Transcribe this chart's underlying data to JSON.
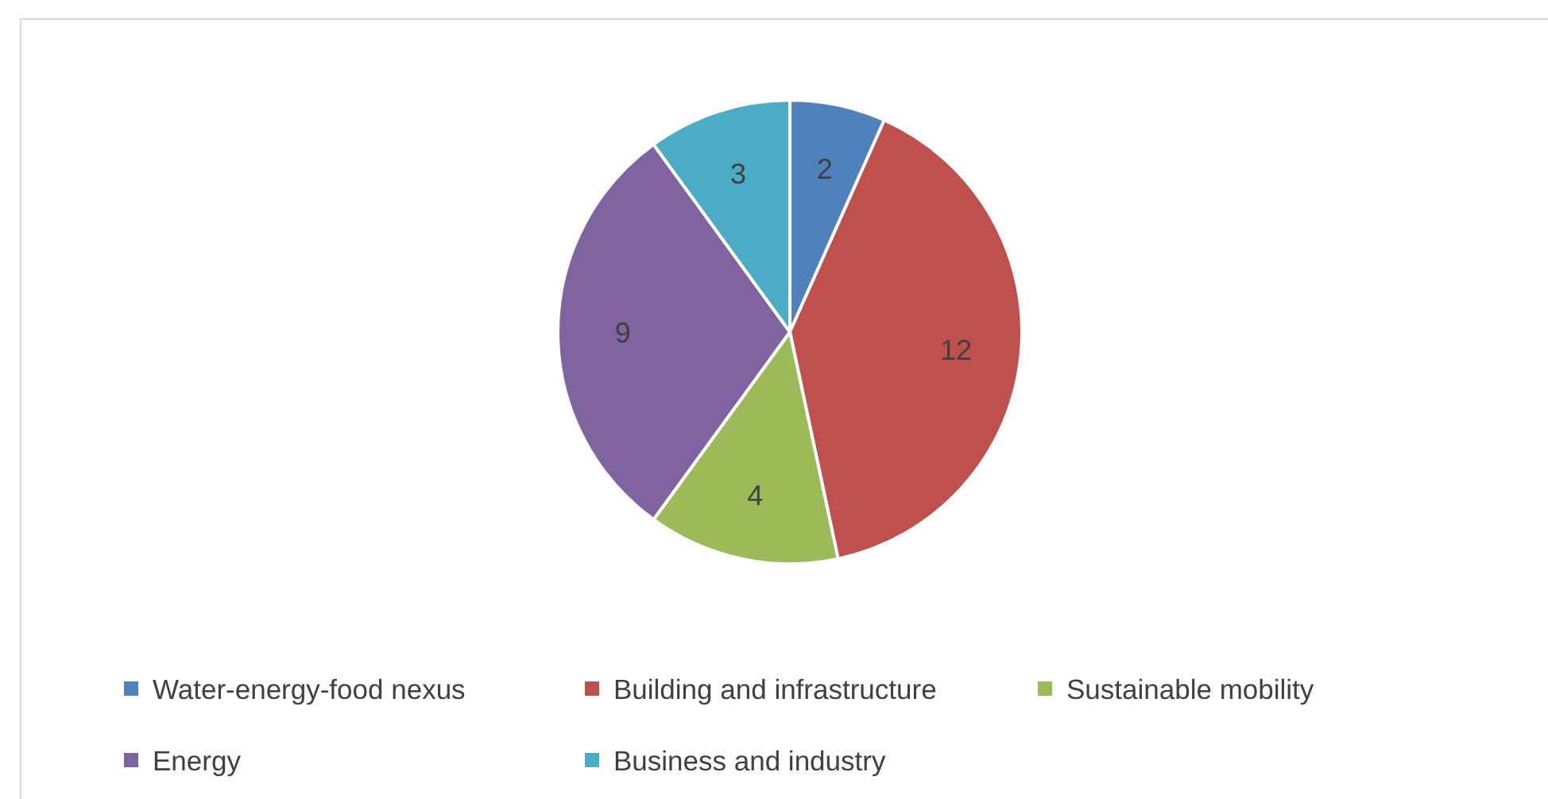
{
  "chart_data": {
    "type": "pie",
    "categories": [
      "Water-energy-food nexus",
      "Building and infrastructure",
      "Sustainable mobility",
      "Energy",
      "Business and industry"
    ],
    "values": [
      2,
      12,
      4,
      9,
      3
    ],
    "colors": [
      "#4f81bd",
      "#c0504d",
      "#9bbb59",
      "#8064a2",
      "#4bacc6"
    ],
    "data_labels": true,
    "legend": "bottom"
  }
}
